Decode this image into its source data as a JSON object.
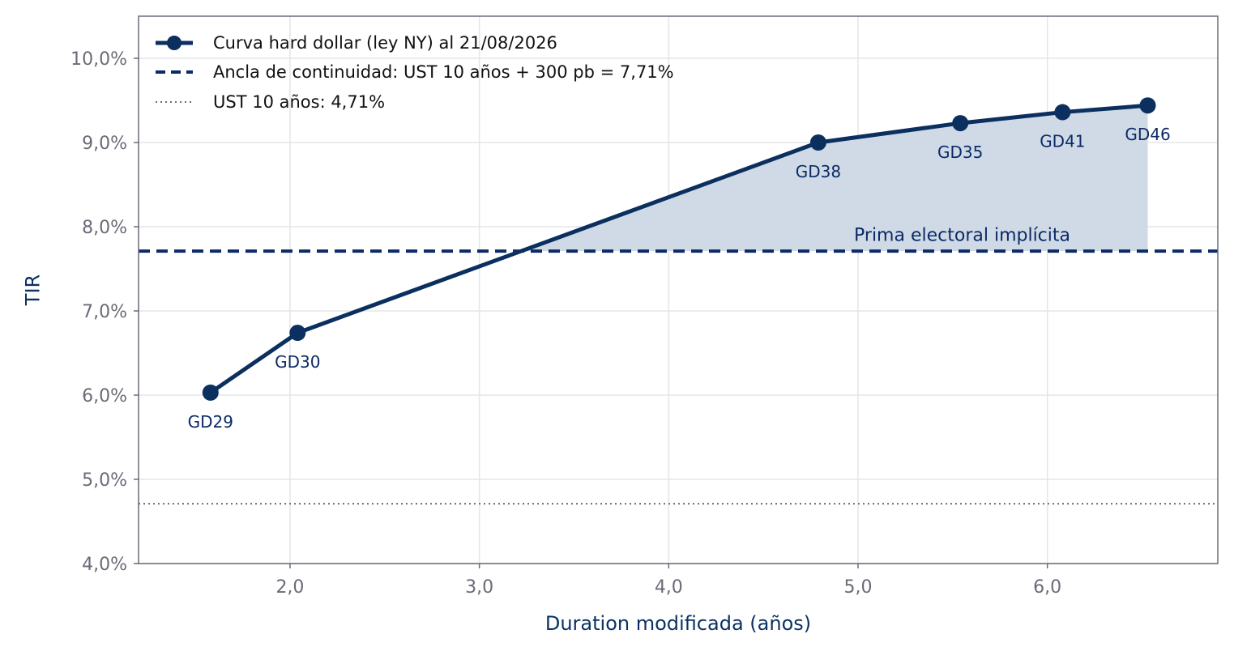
{
  "chart_data": {
    "type": "line",
    "xlabel": "Duration modificada (años)",
    "ylabel": "TIR",
    "xlim": [
      1.2,
      6.9
    ],
    "ylim": [
      4.0,
      10.5
    ],
    "x_ticks": [
      2.0,
      3.0,
      4.0,
      5.0,
      6.0
    ],
    "x_tick_labels": [
      "2,0",
      "3,0",
      "4,0",
      "5,0",
      "6,0"
    ],
    "y_ticks": [
      4.0,
      5.0,
      6.0,
      7.0,
      8.0,
      9.0,
      10.0
    ],
    "y_tick_labels": [
      "4,0%",
      "5,0%",
      "6,0%",
      "7,0%",
      "8,0%",
      "9,0%",
      "10,0%"
    ],
    "grid": true,
    "legend_position": "top-left",
    "series": [
      {
        "name": "Curva hard dollar (ley NY) al 21/08/2026",
        "color": "#0b2f5e",
        "points": [
          {
            "label": "GD29",
            "x": 1.58,
            "y": 6.03
          },
          {
            "label": "GD30",
            "x": 2.04,
            "y": 6.74
          },
          {
            "label": "GD38",
            "x": 4.79,
            "y": 9.0
          },
          {
            "label": "GD35",
            "x": 5.54,
            "y": 9.23
          },
          {
            "label": "GD41",
            "x": 6.08,
            "y": 9.36
          },
          {
            "label": "GD46",
            "x": 6.53,
            "y": 9.44
          }
        ]
      }
    ],
    "reference_lines": [
      {
        "name": "Ancla de continuidad: UST 10 años + 300 pb = 7,71%",
        "y": 7.71,
        "style": "dashed",
        "color": "#0b2a66"
      },
      {
        "name": "UST 10 años: 4,71%",
        "y": 4.71,
        "style": "dotted",
        "color": "#6b6b78"
      }
    ],
    "annotations": [
      {
        "text": "Prima electoral implícita",
        "x": 5.55,
        "y": 7.82
      }
    ],
    "shaded_area": {
      "between": "curve and anchor line",
      "color": "#cfdae6"
    }
  }
}
